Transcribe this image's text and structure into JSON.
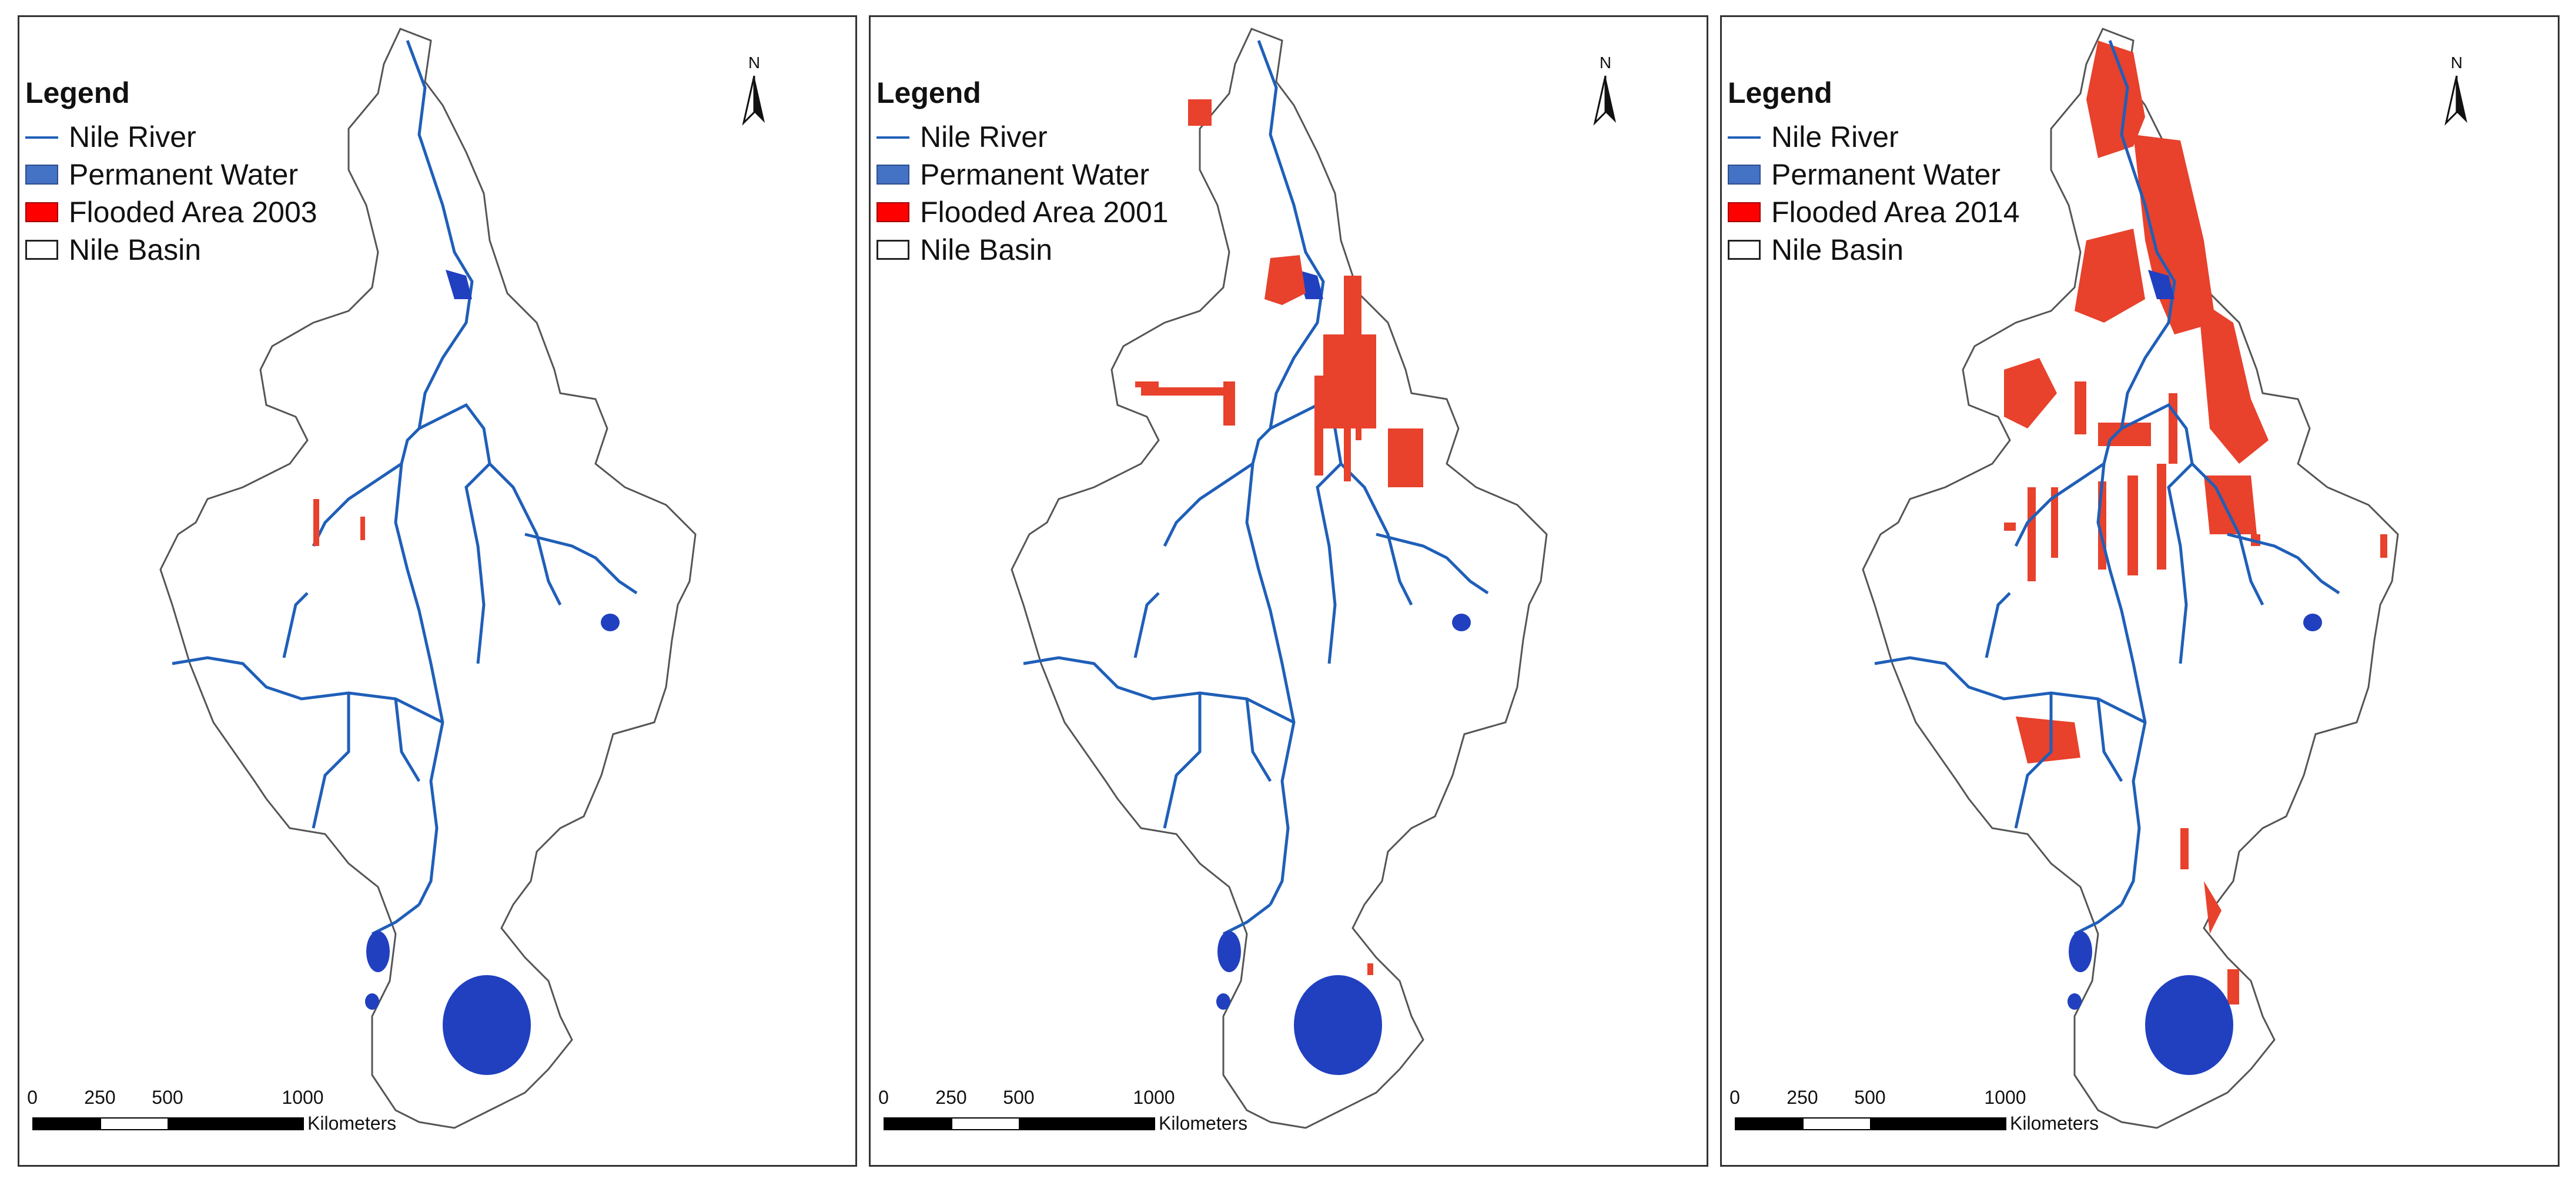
{
  "legend": {
    "title": "Legend",
    "items": {
      "river": "Nile River",
      "permanent": "Permanent Water",
      "basin": "Nile Basin"
    }
  },
  "panels": [
    {
      "flood_label": "Flooded Area 2003"
    },
    {
      "flood_label": "Flooded Area 2001"
    },
    {
      "flood_label": "Flooded Area 2014"
    }
  ],
  "north_arrow": {
    "label": "N"
  },
  "scale_bar": {
    "ticks": [
      "0",
      "250",
      "500",
      "1000"
    ],
    "units": "Kilometers"
  },
  "colors": {
    "river": "#1f5fb8",
    "permanent_water": "#2040c0",
    "flood": "#e8412c",
    "basin_outline": "#555555"
  }
}
